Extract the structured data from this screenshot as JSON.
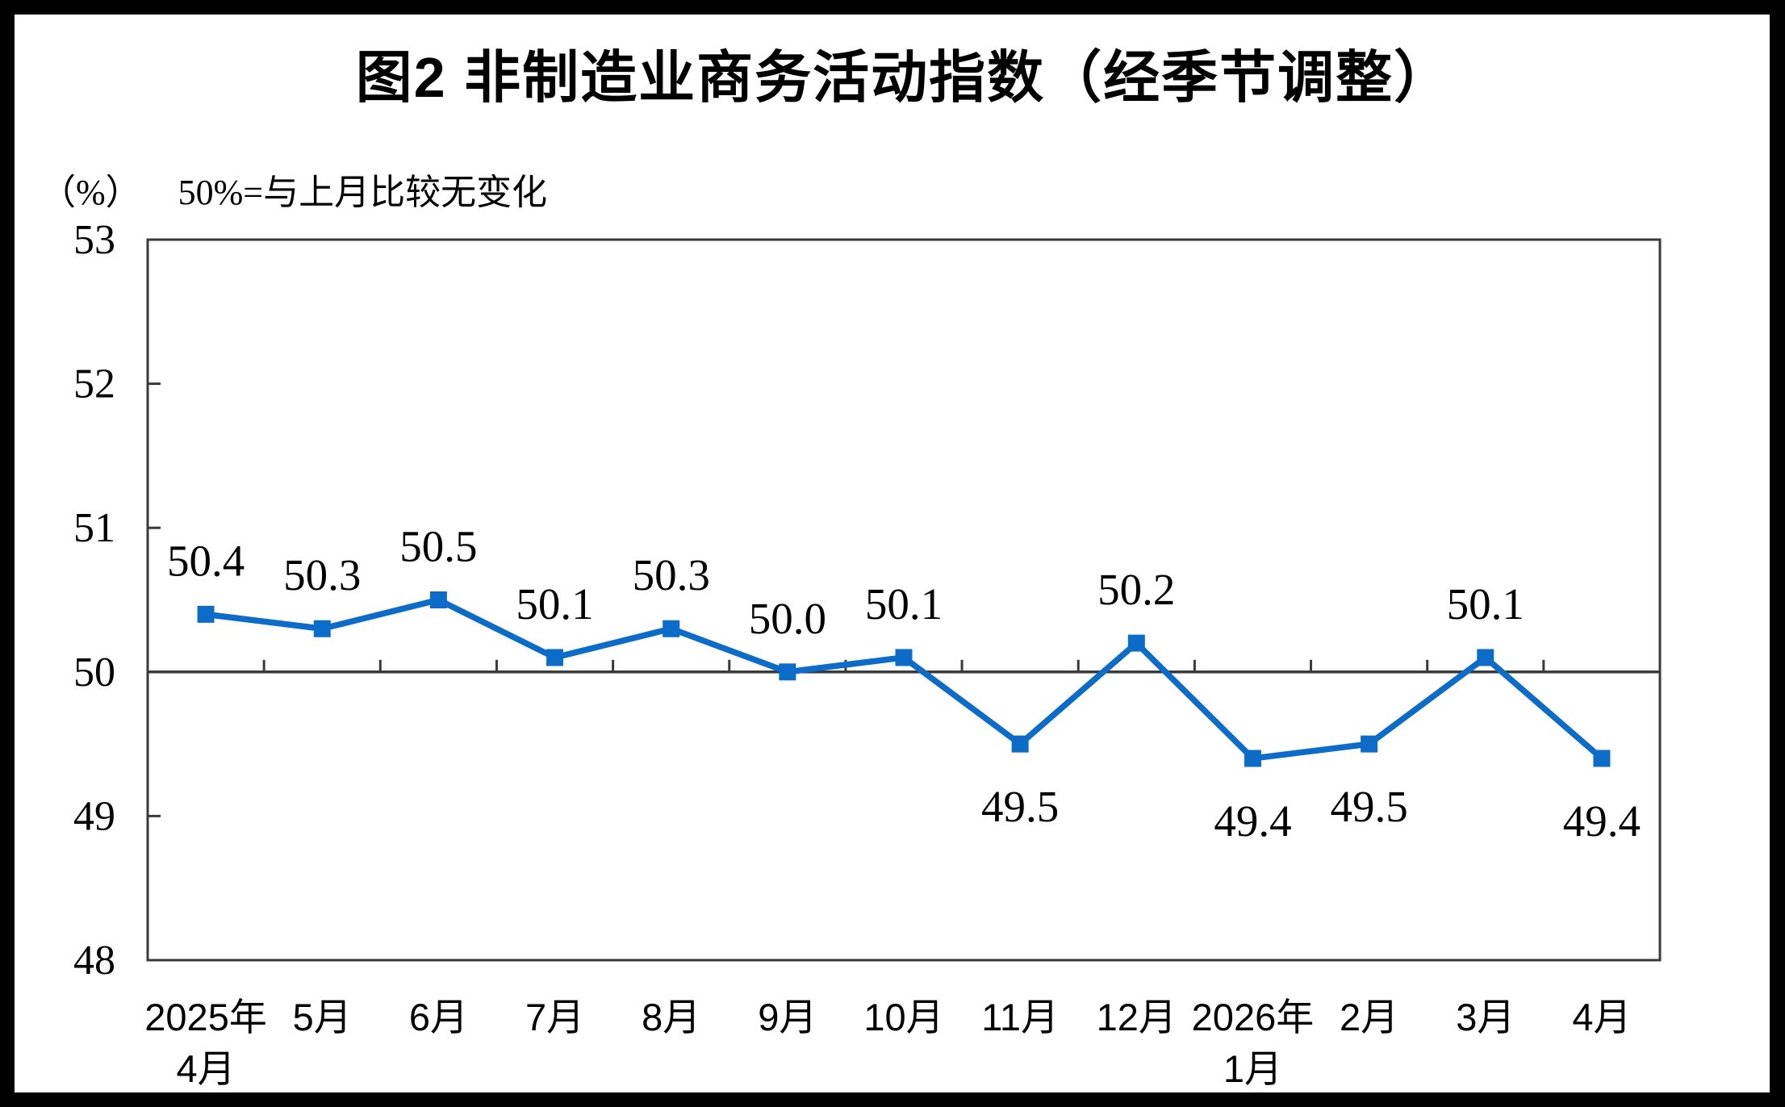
{
  "header": {
    "title": "图2 非制造业商务活动指数（经季节调整）"
  },
  "axis_note": {
    "unit": "（%）",
    "text": "50%=与上月比较无变化"
  },
  "colors": {
    "series": "#0D6CC8",
    "axis": "#3A3A3A",
    "text": "#000000",
    "background": "#FFFFFF",
    "frame": "#000000"
  },
  "chart_data": {
    "type": "line",
    "title": "图2 非制造业商务活动指数（经季节调整）",
    "subtitle": "50%=与上月比较无变化",
    "y_unit": "（%）",
    "categories": [
      [
        "2025年",
        "4月"
      ],
      [
        "5月"
      ],
      [
        "6月"
      ],
      [
        "7月"
      ],
      [
        "8月"
      ],
      [
        "9月"
      ],
      [
        "10月"
      ],
      [
        "11月"
      ],
      [
        "12月"
      ],
      [
        "2026年",
        "1月"
      ],
      [
        "2月"
      ],
      [
        "3月"
      ],
      [
        "4月"
      ]
    ],
    "values": [
      50.4,
      50.3,
      50.5,
      50.1,
      50.3,
      50.0,
      50.1,
      49.5,
      50.2,
      49.4,
      49.5,
      50.1,
      49.4
    ],
    "data_labels": [
      "50.4",
      "50.3",
      "50.5",
      "50.1",
      "50.3",
      "50.0",
      "50.1",
      "49.5",
      "50.2",
      "49.4",
      "49.5",
      "50.1",
      "49.4"
    ],
    "ylim": [
      48,
      53
    ],
    "yticks": [
      48,
      49,
      50,
      51,
      52,
      53
    ],
    "reference_line": 50,
    "grid": false,
    "legend": "none",
    "marker": "square"
  }
}
